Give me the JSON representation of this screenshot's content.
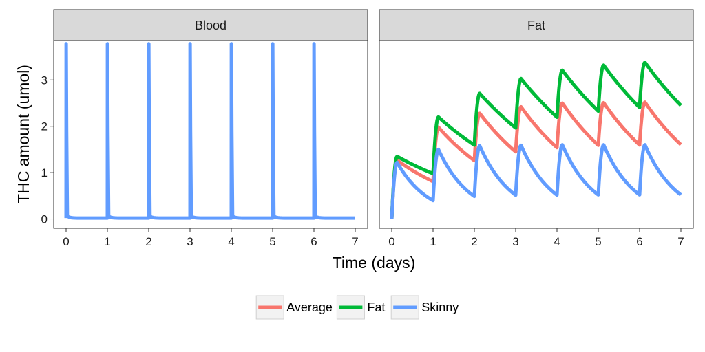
{
  "chart_data": {
    "type": "line",
    "xlabel": "Time (days)",
    "ylabel": "THC amount (umol)",
    "xlim": [
      0,
      7
    ],
    "ylim": [
      -0.2,
      3.85
    ],
    "x_ticks": [
      0,
      1,
      2,
      3,
      4,
      5,
      6,
      7
    ],
    "y_ticks": [
      0,
      1,
      2,
      3
    ],
    "grid": false,
    "legend_position": "bottom",
    "legend": [
      {
        "name": "Average",
        "color": "#F8766D"
      },
      {
        "name": "Fat",
        "color": "#00BA38"
      },
      {
        "name": "Skinny",
        "color": "#619CFF"
      }
    ],
    "panels": [
      {
        "title": "Blood",
        "series": [
          {
            "name": "Skinny",
            "color": "#619CFF",
            "model": {
              "peak": 3.78,
              "spike_width": 0.03,
              "tail": 0.04,
              "tail_decay": 0.5,
              "floor": 0.02,
              "doses": [
                0,
                1,
                2,
                3,
                4,
                5,
                6
              ],
              "end": 7
            }
          }
        ]
      },
      {
        "title": "Fat",
        "series": [
          {
            "name": "Average",
            "color": "#F8766D",
            "model": {
              "onset": 0.13,
              "decay_rate": 0.52,
              "doses": [
                0,
                1,
                2,
                3,
                4,
                5,
                6
              ],
              "end": 7.0,
              "peaks": [
                1.27,
                1.98,
                2.28,
                2.42,
                2.5,
                2.51,
                2.52
              ]
            }
          },
          {
            "name": "Fat",
            "color": "#00BA38",
            "model": {
              "onset": 0.13,
              "decay_rate": 0.37,
              "doses": [
                0,
                1,
                2,
                3,
                4,
                5,
                6
              ],
              "end": 7.0,
              "peaks": [
                1.35,
                2.2,
                2.71,
                3.03,
                3.21,
                3.32,
                3.38
              ]
            }
          },
          {
            "name": "Skinny",
            "color": "#619CFF",
            "model": {
              "onset": 0.13,
              "decay_rate": 1.29,
              "doses": [
                0,
                1,
                2,
                3,
                4,
                5,
                6
              ],
              "end": 7.0,
              "peaks": [
                1.22,
                1.5,
                1.58,
                1.59,
                1.6,
                1.6,
                1.6
              ]
            }
          }
        ]
      }
    ]
  }
}
